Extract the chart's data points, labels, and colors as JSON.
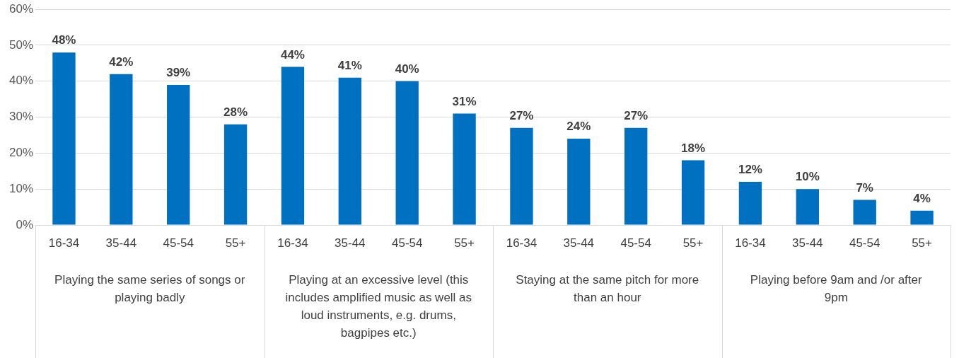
{
  "chart_data": {
    "type": "bar",
    "categories": [
      "Playing the same series of songs or playing badly",
      "Playing at an excessive level (this includes amplified music as well as loud instruments, e.g. drums, bagpipes etc.)",
      "Staying at the same pitch for more than an hour",
      "Playing before 9am and /or after 9pm"
    ],
    "series": [
      {
        "name": "16-34",
        "color": "#0070c0",
        "values": [
          48,
          44,
          27,
          12
        ],
        "value_labels": [
          "48%",
          "44%",
          "27%",
          "12%"
        ]
      },
      {
        "name": "35-44",
        "color": "#0070c0",
        "values": [
          42,
          41,
          24,
          10
        ],
        "value_labels": [
          "42%",
          "41%",
          "24%",
          "10%"
        ]
      },
      {
        "name": "45-54",
        "color": "#0070c0",
        "values": [
          39,
          40,
          27,
          7
        ],
        "value_labels": [
          "39%",
          "40%",
          "27%",
          "7%"
        ]
      },
      {
        "name": "55+",
        "color": "#0070c0",
        "values": [
          28,
          31,
          18,
          4
        ],
        "value_labels": [
          "28%",
          "31%",
          "18%",
          "4%"
        ]
      }
    ],
    "ylim": [
      0,
      60
    ],
    "yticks": [
      {
        "value": 0,
        "label": "0%"
      },
      {
        "value": 10,
        "label": "10%"
      },
      {
        "value": 20,
        "label": "20%"
      },
      {
        "value": 30,
        "label": "30%"
      },
      {
        "value": 40,
        "label": "40%"
      },
      {
        "value": 50,
        "label": "50%"
      },
      {
        "value": 60,
        "label": "60%"
      }
    ],
    "grid": "y",
    "legend": false
  }
}
